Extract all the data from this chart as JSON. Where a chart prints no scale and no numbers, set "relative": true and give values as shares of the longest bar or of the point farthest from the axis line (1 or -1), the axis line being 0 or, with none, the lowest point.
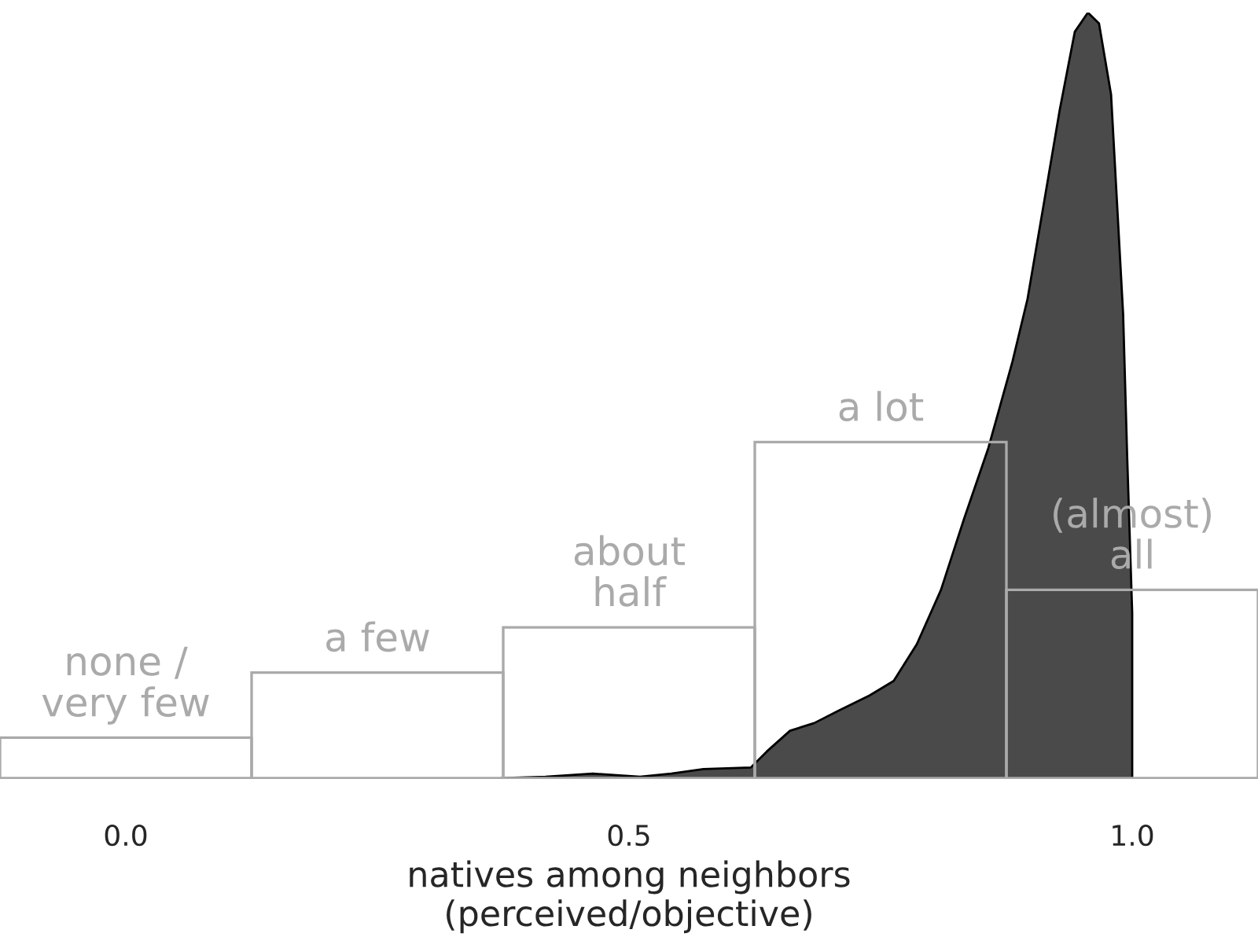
{
  "chart_data": {
    "type": "bar",
    "relative": true,
    "xlabel": "natives among neighbors\n(perceived/objective)",
    "xlim": [
      -0.125,
      1.125
    ],
    "xticks": [
      {
        "value": 0,
        "label": "0.0"
      },
      {
        "value": 0.5,
        "label": "0.5"
      },
      {
        "value": 1.0,
        "label": "1.0"
      }
    ],
    "grid": false,
    "legend": false,
    "series": [
      {
        "type": "area",
        "color": "#4a4a4a",
        "x": [
          0.373,
          0.417,
          0.464,
          0.511,
          0.542,
          0.574,
          0.621,
          0.637,
          0.66,
          0.684,
          0.708,
          0.739,
          0.763,
          0.786,
          0.81,
          0.833,
          0.857,
          0.881,
          0.896,
          0.912,
          0.928,
          0.943,
          0.956,
          0.967,
          0.979,
          0.991,
          0.995,
          1.0,
          1.0
        ],
        "values": [
          0,
          0.002,
          0.006,
          0.002,
          0.006,
          0.012,
          0.014,
          0.035,
          0.062,
          0.072,
          0.088,
          0.108,
          0.127,
          0.175,
          0.246,
          0.339,
          0.431,
          0.544,
          0.626,
          0.749,
          0.873,
          0.975,
          1.0,
          0.986,
          0.893,
          0.606,
          0.421,
          0.216,
          0
        ]
      },
      {
        "color": "#aaaaaa",
        "x": [
          0,
          0.25,
          0.5,
          0.75,
          1.0
        ],
        "values": [
          0.053,
          0.138,
          0.197,
          0.439,
          0.246
        ]
      }
    ],
    "annotations": [
      {
        "text": "none /\nvery few",
        "x": 0,
        "y": 0.053
      },
      {
        "text": "a few",
        "x": 0.25,
        "y": 0.138
      },
      {
        "text": "about\nhalf",
        "x": 0.5,
        "y": 0.197
      },
      {
        "text": "a lot",
        "x": 0.75,
        "y": 0.439
      },
      {
        "text": "(almost)\nall",
        "x": 1.0,
        "y": 0.246
      }
    ]
  }
}
